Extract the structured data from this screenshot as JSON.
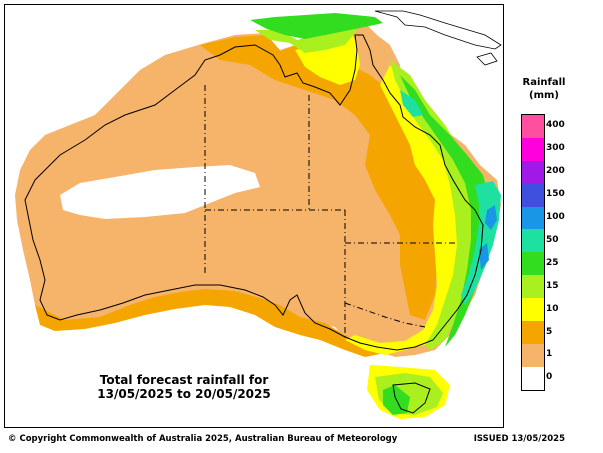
{
  "map": {
    "title_line1": "Total forecast rainfall for",
    "title_line2": "13/05/2025 to 20/05/2025"
  },
  "legend": {
    "title": "Rainfall",
    "unit": "(mm)",
    "levels": [
      {
        "label": "400",
        "color": "#ff4f9e"
      },
      {
        "label": "300",
        "color": "#ff00dc"
      },
      {
        "label": "200",
        "color": "#a019e6"
      },
      {
        "label": "150",
        "color": "#3f4fe0"
      },
      {
        "label": "100",
        "color": "#1a96e6"
      },
      {
        "label": "50",
        "color": "#1ee0a0"
      },
      {
        "label": "25",
        "color": "#32dc1e"
      },
      {
        "label": "15",
        "color": "#aaf01e"
      },
      {
        "label": "10",
        "color": "#ffff00"
      },
      {
        "label": "5",
        "color": "#f5a500"
      },
      {
        "label": "1",
        "color": "#f5b469"
      },
      {
        "label": "0",
        "color": "#ffffff"
      }
    ]
  },
  "footer": {
    "copyright": "© Copyright Commonwealth of Australia 2025, Australian Bureau of Meteorology",
    "issued": "ISSUED 13/05/2025"
  }
}
